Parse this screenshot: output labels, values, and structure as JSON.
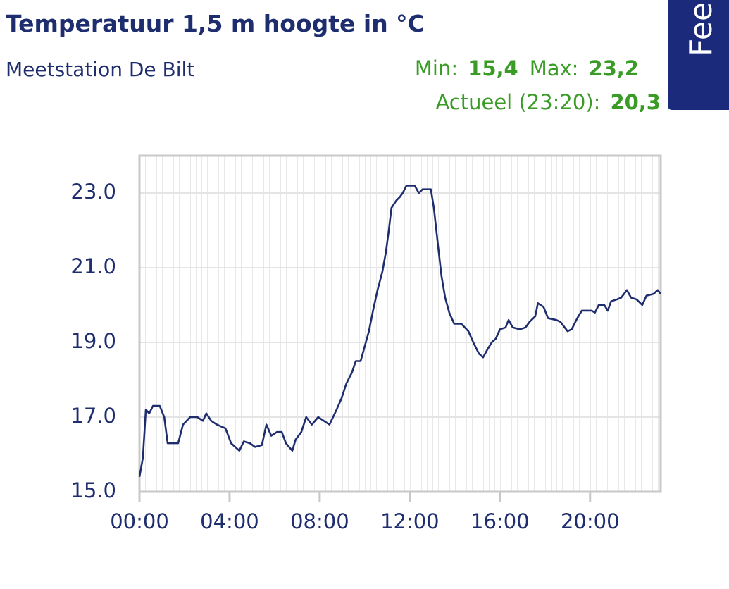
{
  "header": {
    "title": "Temperatuur 1,5 m hoogte in °C",
    "subtitle": "Meetstation De Bilt",
    "min_label": "Min:",
    "min": "15,4",
    "max_label": "Max:",
    "max": "23,2",
    "current_label": "Actueel (23:20):",
    "current": "20,3",
    "feedback_tab": "Fee"
  },
  "chart_data": {
    "type": "line",
    "color": "#1e2d6e",
    "x": [
      0,
      9,
      17,
      26,
      36,
      54,
      66,
      75,
      103,
      116,
      135,
      154,
      169,
      178,
      191,
      206,
      229,
      244,
      266,
      278,
      294,
      308,
      326,
      338,
      351,
      366,
      379,
      390,
      407,
      416,
      431,
      444,
      459,
      476,
      491,
      506,
      525,
      538,
      551,
      566,
      576,
      589,
      600,
      611,
      623,
      634,
      647,
      656,
      664,
      671,
      684,
      694,
      701,
      711,
      733,
      744,
      754,
      776,
      784,
      795,
      804,
      814,
      825,
      838,
      857,
      876,
      889,
      904,
      915,
      926,
      938,
      949,
      960,
      975,
      983,
      994,
      1013,
      1028,
      1039,
      1054,
      1061,
      1076,
      1088,
      1110,
      1121,
      1140,
      1151,
      1166,
      1178,
      1204,
      1213,
      1223,
      1238,
      1247,
      1256,
      1271,
      1283,
      1298,
      1309,
      1324,
      1339,
      1350,
      1369,
      1380,
      1388
    ],
    "series": [
      {
        "name": null,
        "color": "#1e2d6e",
        "values": [
          15.4,
          15.9,
          17.2,
          17.1,
          17.3,
          17.3,
          17.0,
          16.3,
          16.3,
          16.8,
          17.0,
          17.0,
          16.9,
          17.1,
          16.9,
          16.8,
          16.7,
          16.3,
          16.1,
          16.35,
          16.3,
          16.2,
          16.25,
          16.8,
          16.5,
          16.6,
          16.6,
          16.3,
          16.1,
          16.4,
          16.6,
          17.0,
          16.8,
          17.0,
          16.9,
          16.8,
          17.2,
          17.5,
          17.9,
          18.2,
          18.5,
          18.5,
          18.9,
          19.3,
          19.9,
          20.4,
          20.9,
          21.4,
          22.0,
          22.6,
          22.8,
          22.9,
          23.0,
          23.2,
          23.2,
          23.0,
          23.1,
          23.1,
          22.6,
          21.6,
          20.8,
          20.2,
          19.8,
          19.5,
          19.5,
          19.3,
          19.0,
          18.7,
          18.6,
          18.8,
          19.0,
          19.1,
          19.35,
          19.4,
          19.6,
          19.4,
          19.35,
          19.4,
          19.55,
          19.7,
          20.05,
          19.95,
          19.65,
          19.6,
          19.55,
          19.3,
          19.35,
          19.65,
          19.85,
          19.85,
          19.8,
          20.0,
          20.0,
          19.85,
          20.1,
          20.15,
          20.2,
          20.4,
          20.2,
          20.15,
          20.0,
          20.25,
          20.3,
          20.4,
          20.3
        ]
      }
    ],
    "xlim": [
      0,
      1388
    ],
    "xticks": [
      {
        "value": 0,
        "label": "00:00"
      },
      {
        "value": 240,
        "label": "04:00"
      },
      {
        "value": 480,
        "label": "08:00"
      },
      {
        "value": 720,
        "label": "12:00"
      },
      {
        "value": 960,
        "label": "16:00"
      },
      {
        "value": 1200,
        "label": "20:00"
      }
    ],
    "ylim": [
      15,
      24
    ],
    "yticks": [
      {
        "value": 15,
        "label": "15.0"
      },
      {
        "value": 17,
        "label": "17.0"
      },
      {
        "value": 19,
        "label": "19.0"
      },
      {
        "value": 21,
        "label": "21.0"
      },
      {
        "value": 23,
        "label": "23.0"
      }
    ],
    "grid": true
  }
}
